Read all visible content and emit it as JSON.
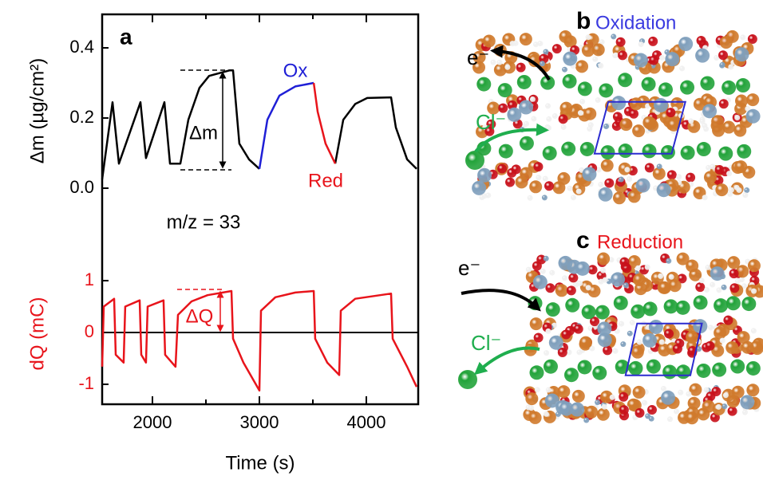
{
  "chart_data": [
    {
      "type": "line",
      "panel_label": "a",
      "ylabel": "Δm (µg/cm²)",
      "xlim": [
        1530,
        4485
      ],
      "ylim": [
        -0.0545,
        0.4955
      ],
      "yticks": [
        {
          "value": 0,
          "label": "0.0"
        },
        {
          "value": 0.2,
          "label": "0.2"
        },
        0.4
      ],
      "series": [
        {
          "color": "#000000",
          "x": [
            1530,
            1627,
            1687,
            1888,
            1940,
            2112,
            2164,
            2261,
            2336,
            2440,
            2530,
            2724,
            2754,
            2813,
            2903,
            3000,
            null,
            3709,
            3784,
            3896,
            4008,
            4231,
            4276,
            4381,
            4470
          ],
          "values": [
            0.025,
            0.245,
            0.07,
            0.245,
            0.086,
            0.245,
            0.07,
            0.07,
            0.195,
            0.286,
            0.32,
            0.336,
            0.336,
            0.127,
            0.082,
            0.055,
            null,
            0.07,
            0.195,
            0.24,
            0.257,
            0.259,
            0.173,
            0.082,
            0.055
          ]
        },
        {
          "color": "#1f1fd6",
          "x": [
            3000,
            3075,
            3187,
            3336,
            3508
          ],
          "values": [
            0.055,
            0.195,
            0.264,
            0.29,
            0.3
          ]
        },
        {
          "color": "#e8141b",
          "x": [
            3508,
            3545,
            3619,
            3709
          ],
          "values": [
            0.3,
            0.218,
            0.127,
            0.07
          ]
        }
      ],
      "annotations": [
        {
          "text": "Ox",
          "color": "#1f1fd6"
        },
        {
          "text": "Red",
          "color": "#e8141b"
        },
        {
          "text": "Δm"
        },
        {
          "text": "m/z = 33"
        }
      ]
    },
    {
      "type": "line",
      "ylabel": "dQ (mC)",
      "xlabel": "Time (s)",
      "axis_color": "#e8141b",
      "xlim": [
        1530,
        4485
      ],
      "xticks": [
        2000,
        3000,
        4000
      ],
      "xminorticks": [
        2500,
        3500
      ],
      "ylim": [
        -1.385,
        1.338
      ],
      "yticks": [
        -1,
        0,
        1
      ],
      "zero_line": true,
      "series": [
        {
          "color": "#e8141b",
          "x": [
            1530,
            1545,
            1642,
            1657,
            1731,
            1746,
            1881,
            1896,
            1940,
            1955,
            2104,
            2119,
            2216,
            2239,
            2366,
            2515,
            2739,
            2754,
            2851,
            3000,
            3015,
            3149,
            3336,
            3508,
            3522,
            3634,
            3746,
            3761,
            3896,
            4231,
            4246,
            4381,
            4470
          ],
          "values": [
            -0.66,
            0.5,
            0.65,
            -0.43,
            -0.58,
            0.5,
            0.62,
            -0.43,
            -0.58,
            0.5,
            0.62,
            -0.43,
            -0.66,
            0.34,
            0.6,
            0.72,
            0.8,
            -0.12,
            -0.58,
            -1.12,
            0.42,
            0.68,
            0.77,
            0.8,
            -0.12,
            -0.58,
            -0.82,
            0.42,
            0.65,
            0.75,
            -0.12,
            -0.66,
            -1.05
          ]
        }
      ],
      "annotations": [
        {
          "text": "ΔQ",
          "color": "#e8141b"
        }
      ]
    }
  ],
  "panels": [
    {
      "label": "b",
      "title": "Oxidation",
      "title_color": "#3a3ae0",
      "electron": "e⁻",
      "ion": "Cl⁻"
    },
    {
      "label": "c",
      "title": "Reduction",
      "title_color": "#e8141b",
      "electron": "e⁻",
      "ion": "Cl⁻"
    }
  ]
}
